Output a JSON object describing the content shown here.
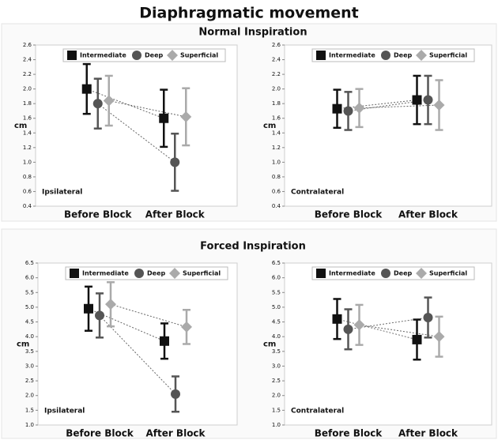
{
  "title": "Diaphragmatic movement",
  "section_titles": [
    "Normal Inspiration",
    "Forced Inspiration"
  ],
  "chart_data": [
    {
      "type": "errorbar",
      "annotation": "Ipsilateral",
      "ylabel": "cm",
      "categories": [
        "Before Block",
        "After Block"
      ],
      "ylim": [
        0.4,
        2.6
      ],
      "yticks": [
        0.4,
        0.6,
        0.8,
        {
          "value": 1.0,
          "label": "1.0"
        },
        1.2,
        1.4,
        1.6,
        1.8,
        {
          "value": 2.0,
          "label": "2.0"
        },
        2.2,
        2.4,
        2.6
      ],
      "series": [
        {
          "name": "Intermediate",
          "color": "#111111",
          "marker": "square",
          "values": [
            2.0,
            1.6
          ],
          "errors": [
            0.34,
            0.39
          ]
        },
        {
          "name": "Deep",
          "color": "#555555",
          "marker": "circle",
          "values": [
            1.8,
            1.0
          ],
          "errors": [
            0.34,
            0.39
          ]
        },
        {
          "name": "Superficial",
          "color": "#aaaaaa",
          "marker": "diamond",
          "values": [
            1.84,
            1.62
          ],
          "errors": [
            0.34,
            0.39
          ]
        }
      ]
    },
    {
      "type": "errorbar",
      "annotation": "Contralateral",
      "ylabel": "cm",
      "categories": [
        "Before Block",
        "After Block"
      ],
      "ylim": [
        0.4,
        2.6
      ],
      "yticks": [
        0.4,
        0.6,
        0.8,
        {
          "value": 1.0,
          "label": "1.0"
        },
        1.2,
        1.4,
        1.6,
        1.8,
        {
          "value": 2.0,
          "label": "2.0"
        },
        2.2,
        2.4,
        2.6
      ],
      "series": [
        {
          "name": "Intermediate",
          "color": "#111111",
          "marker": "square",
          "values": [
            1.73,
            1.85
          ],
          "errors": [
            0.26,
            0.33
          ]
        },
        {
          "name": "Deep",
          "color": "#555555",
          "marker": "circle",
          "values": [
            1.7,
            1.85
          ],
          "errors": [
            0.26,
            0.33
          ]
        },
        {
          "name": "Superficial",
          "color": "#aaaaaa",
          "marker": "diamond",
          "values": [
            1.74,
            1.78
          ],
          "errors": [
            0.26,
            0.34
          ]
        }
      ]
    },
    {
      "type": "errorbar",
      "annotation": "Ipsilateral",
      "ylabel": "cm",
      "categories": [
        "Before Block",
        "After Block"
      ],
      "ylim": [
        1.0,
        6.5
      ],
      "yticks": [
        {
          "value": 1.0,
          "label": "1.0"
        },
        1.5,
        {
          "value": 2.0,
          "label": "2.0"
        },
        2.5,
        {
          "value": 3.0,
          "label": "3.0"
        },
        3.5,
        {
          "value": 4.0,
          "label": "4.0"
        },
        4.5,
        {
          "value": 5.0,
          "label": "5.0"
        },
        5.5,
        {
          "value": 6.0,
          "label": "6.0"
        },
        6.5
      ],
      "series": [
        {
          "name": "Intermediate",
          "color": "#111111",
          "marker": "square",
          "values": [
            4.95,
            3.85
          ],
          "errors": [
            0.75,
            0.6
          ]
        },
        {
          "name": "Deep",
          "color": "#555555",
          "marker": "circle",
          "values": [
            4.72,
            2.05
          ],
          "errors": [
            0.75,
            0.6
          ]
        },
        {
          "name": "Superficial",
          "color": "#aaaaaa",
          "marker": "diamond",
          "values": [
            5.1,
            4.33
          ],
          "errors": [
            0.75,
            0.58
          ]
        }
      ]
    },
    {
      "type": "errorbar",
      "annotation": "Contralateral",
      "ylabel": "cm",
      "categories": [
        "Before Block",
        "After Block"
      ],
      "ylim": [
        1.0,
        6.5
      ],
      "yticks": [
        {
          "value": 1.0,
          "label": "1.0"
        },
        1.5,
        {
          "value": 2.0,
          "label": "2.0"
        },
        2.5,
        {
          "value": 3.0,
          "label": "3.0"
        },
        3.5,
        {
          "value": 4.0,
          "label": "4.0"
        },
        4.5,
        {
          "value": 5.0,
          "label": "5.0"
        },
        5.5,
        {
          "value": 6.0,
          "label": "6.0"
        },
        6.5
      ],
      "series": [
        {
          "name": "Intermediate",
          "color": "#111111",
          "marker": "square",
          "values": [
            4.6,
            3.9
          ],
          "errors": [
            0.68,
            0.68
          ]
        },
        {
          "name": "Deep",
          "color": "#555555",
          "marker": "circle",
          "values": [
            4.25,
            4.65
          ],
          "errors": [
            0.68,
            0.68
          ]
        },
        {
          "name": "Superficial",
          "color": "#aaaaaa",
          "marker": "diamond",
          "values": [
            4.4,
            4.0
          ],
          "errors": [
            0.68,
            0.68
          ]
        }
      ]
    }
  ]
}
